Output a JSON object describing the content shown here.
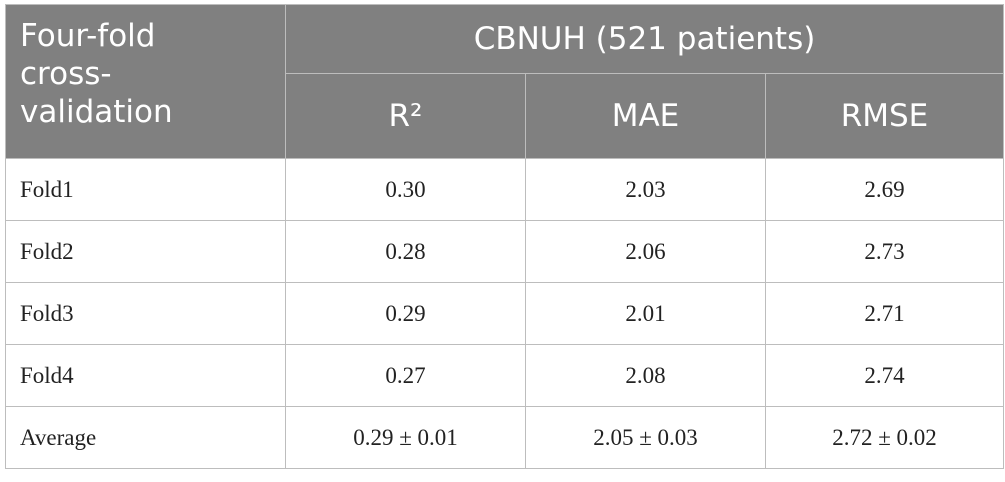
{
  "header": {
    "first_column": "Four-fold cross-validation",
    "group": "CBNUH (521 patients)",
    "metrics": [
      "R²",
      "MAE",
      "RMSE"
    ]
  },
  "table": {
    "rows": [
      [
        "Fold1",
        "0.30",
        "2.03",
        "2.69"
      ],
      [
        "Fold2",
        "0.28",
        "2.06",
        "2.73"
      ],
      [
        "Fold3",
        "0.29",
        "2.01",
        "2.71"
      ],
      [
        "Fold4",
        "0.27",
        "2.08",
        "2.74"
      ],
      [
        "Average",
        "0.29 ± 0.01",
        "2.05 ± 0.03",
        "2.72 ± 0.02"
      ]
    ]
  }
}
